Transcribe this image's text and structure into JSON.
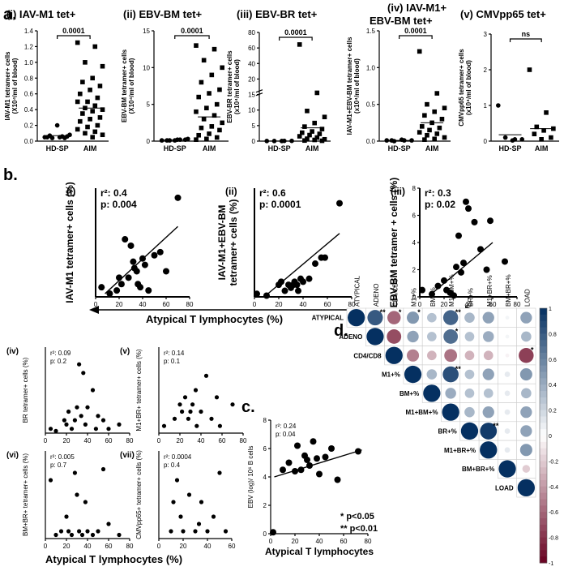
{
  "panel_labels": {
    "a": "a.",
    "b": "b.",
    "c": "c.",
    "d": "d."
  },
  "chart_data": [
    {
      "id": "ai",
      "type": "scatter-dot",
      "title": "(i) IAV-M1 tet+",
      "ylabel": "IAV-M1 tetramer+ cells (X10⁴/ml of blood)",
      "categories": [
        "HD-SP",
        "AIM"
      ],
      "ylim": [
        0,
        1.4
      ],
      "yticks": [
        "0.0",
        "0.2",
        "0.4",
        "0.6",
        "0.8",
        "1.0",
        "1.2",
        "1.4"
      ],
      "pvalue": "0.0001",
      "groups": [
        [
          0.05,
          0.06,
          0.04,
          0.08,
          0.05,
          0.07,
          0.06,
          0.2,
          0.05,
          0.04
        ],
        [
          1.25,
          1.2,
          1.0,
          0.95,
          0.8,
          0.75,
          0.7,
          0.65,
          0.6,
          0.55,
          0.5,
          0.5,
          0.45,
          0.42,
          0.4,
          0.38,
          0.35,
          0.3,
          0.28,
          0.25,
          0.2,
          0.18,
          0.15,
          0.12,
          0.1,
          0.08,
          0.05
        ]
      ],
      "means": [
        0.07,
        0.42
      ]
    },
    {
      "id": "aii",
      "type": "scatter-dot",
      "title": "(ii) EBV-BM tet+",
      "ylabel": "EBV-BM tetramer+ cells (X10⁴/ml of blood)",
      "categories": [
        "HD-SP",
        "AIM"
      ],
      "ylim": [
        0,
        15
      ],
      "yticks": [
        "0",
        "5",
        "10",
        "15"
      ],
      "pvalue": "0.0001",
      "groups": [
        [
          0.1,
          0.2,
          0.1,
          0.3,
          0.2,
          0.1,
          0.2,
          0.1
        ],
        [
          13,
          12.5,
          11,
          10,
          9,
          8,
          7,
          6.5,
          6,
          5,
          4.5,
          4,
          3.5,
          3,
          2.5,
          2,
          1.8,
          1.5,
          1,
          0.8,
          0.5,
          0.3,
          0.2
        ]
      ],
      "means": [
        0.15,
        3.3
      ]
    },
    {
      "id": "aiii",
      "type": "scatter-dot",
      "title": "(iii) EBV-BR tet+",
      "ylabel": "EBV-BR tetramer+ cells (x10⁴/ml of blood)",
      "categories": [
        "HD-SP",
        "AIM"
      ],
      "ylim": [
        0,
        90
      ],
      "yticks": [
        "0",
        "5",
        "10",
        "15",
        "20",
        "40",
        "60",
        "80"
      ],
      "break_ticks": [
        "0",
        "5",
        "10",
        "15"
      ],
      "pvalue": "0.0001",
      "groups": [
        [
          0.1,
          0.2,
          0.1,
          0.2,
          0.1
        ],
        [
          80,
          40,
          25,
          20,
          15,
          12,
          10,
          8,
          7,
          6,
          5,
          4,
          3,
          2,
          1.5,
          1,
          0.5,
          0.3
        ]
      ],
      "means": [
        0.1,
        11
      ]
    },
    {
      "id": "aiv",
      "type": "scatter-dot",
      "title": "(iv) IAV-M1+ EBV-BM tet+",
      "ylabel": "IAV-M1+EBV-BM tetramer+ cells (x10⁴/ml of blood)",
      "categories": [
        "HD-SP",
        "AIM"
      ],
      "ylim": [
        0,
        1.5
      ],
      "yticks": [
        "0.0",
        "0.5",
        "1.0",
        "1.5"
      ],
      "pvalue": "0.0001",
      "groups": [
        [
          0.01,
          0.01,
          0.0,
          0.01,
          0.02,
          0.01
        ],
        [
          1.22,
          0.65,
          0.5,
          0.45,
          0.4,
          0.35,
          0.3,
          0.25,
          0.2,
          0.18,
          0.15,
          0.12,
          0.1,
          0.08,
          0.05,
          0.03,
          0.02
        ]
      ],
      "means": [
        0.01,
        0.25
      ]
    },
    {
      "id": "av",
      "type": "scatter-dot",
      "title": "(v) CMVpp65 tet+",
      "ylabel": "CMVpp65 tetramer+ cells (x10⁴/ml of blood)",
      "categories": [
        "HD-SP",
        "AIM"
      ],
      "ylim": [
        0,
        3
      ],
      "yticks": [
        "0",
        "1",
        "2",
        "3"
      ],
      "pvalue": "ns",
      "groups": [
        [
          1.0,
          0.05,
          0.1,
          0.05,
          0.02
        ],
        [
          2.0,
          0.8,
          0.4,
          0.35,
          0.3,
          0.2,
          0.1,
          0.05
        ]
      ],
      "means": [
        0.18,
        0.35
      ]
    },
    {
      "id": "bi",
      "type": "scatter",
      "roman": "(i)",
      "ylabel": "IAV-M1 tetramer+ cells (%)",
      "r2": "r²: 0.4",
      "p": "p: 0.004",
      "xticks": [
        "0",
        "20",
        "40",
        "60",
        "80"
      ],
      "yticks": [],
      "xlim": [
        0,
        80
      ],
      "ylim": [
        0,
        1.7
      ],
      "points": [
        [
          5,
          0.15
        ],
        [
          12,
          0.05
        ],
        [
          18,
          0.1
        ],
        [
          20,
          0.3
        ],
        [
          22,
          0.2
        ],
        [
          25,
          0.9
        ],
        [
          28,
          0.3
        ],
        [
          30,
          0.8
        ],
        [
          32,
          0.55
        ],
        [
          33,
          0.45
        ],
        [
          35,
          0.4
        ],
        [
          36,
          0.2
        ],
        [
          38,
          0.15
        ],
        [
          40,
          0.6
        ],
        [
          42,
          0.5
        ],
        [
          45,
          0.1
        ],
        [
          50,
          0.65
        ],
        [
          55,
          0.7
        ],
        [
          60,
          0.4
        ],
        [
          70,
          1.55
        ]
      ],
      "line": [
        [
          8,
          0.05
        ],
        [
          70,
          1.1
        ]
      ]
    },
    {
      "id": "bii",
      "type": "scatter",
      "roman": "(ii)",
      "ylabel": "IAV-M1+EBV-BM tetramer+ cells (%)",
      "r2": "r²: 0.6",
      "p": "p: 0.0001",
      "xticks": [
        "0",
        "20",
        "40",
        "60",
        "80"
      ],
      "yticks": [],
      "xlim": [
        0,
        80
      ],
      "ylim": [
        0,
        1.8
      ],
      "points": [
        [
          2,
          0.05
        ],
        [
          10,
          0.02
        ],
        [
          20,
          0.2
        ],
        [
          22,
          0.25
        ],
        [
          25,
          0.1
        ],
        [
          28,
          0.2
        ],
        [
          30,
          0.15
        ],
        [
          32,
          0.2
        ],
        [
          33,
          0.25
        ],
        [
          35,
          0.2
        ],
        [
          36,
          0.1
        ],
        [
          38,
          0.3
        ],
        [
          40,
          0.25
        ],
        [
          45,
          0.3
        ],
        [
          50,
          0.55
        ],
        [
          55,
          0.65
        ],
        [
          58,
          0.65
        ],
        [
          70,
          1.55
        ]
      ],
      "line": [
        [
          8,
          0.0
        ],
        [
          70,
          1.05
        ]
      ]
    },
    {
      "id": "biii",
      "type": "scatter",
      "roman": "(iii)",
      "ylabel": "EBV-BM tetramer + cells (%)",
      "r2": "r²: 0.3",
      "p": "p: 0.02",
      "xticks": [
        "0",
        "20",
        "40",
        "60",
        "80"
      ],
      "yticks": [
        "0",
        "2",
        "4",
        "6",
        "8"
      ],
      "xlim": [
        0,
        80
      ],
      "ylim": [
        0,
        8
      ],
      "points": [
        [
          2,
          0.5
        ],
        [
          10,
          0.2
        ],
        [
          15,
          0.8
        ],
        [
          20,
          1.2
        ],
        [
          22,
          0.5
        ],
        [
          25,
          0.3
        ],
        [
          28,
          0.1
        ],
        [
          30,
          2.2
        ],
        [
          32,
          4.5
        ],
        [
          34,
          1.8
        ],
        [
          36,
          2.5
        ],
        [
          38,
          7.0
        ],
        [
          40,
          6.5
        ],
        [
          45,
          5.5
        ],
        [
          50,
          3.5
        ],
        [
          55,
          2.0
        ],
        [
          58,
          5.6
        ],
        [
          70,
          2.6
        ]
      ],
      "line": [
        [
          8,
          0.1
        ],
        [
          60,
          4.0
        ]
      ]
    },
    {
      "id": "biv",
      "type": "scatter",
      "roman": "(iv)",
      "ylabel": "BR tetramer+ cells (%)",
      "r2": "r²: 0.09",
      "p": "p: 0.2",
      "xticks": [
        "0",
        "20",
        "40",
        "60",
        "80"
      ],
      "xlim": [
        0,
        80
      ],
      "ylim": [
        0,
        20
      ],
      "points": [
        [
          5,
          1
        ],
        [
          10,
          0.5
        ],
        [
          18,
          3
        ],
        [
          20,
          2
        ],
        [
          22,
          5
        ],
        [
          25,
          1
        ],
        [
          28,
          3
        ],
        [
          30,
          6
        ],
        [
          32,
          16
        ],
        [
          34,
          4
        ],
        [
          36,
          14
        ],
        [
          38,
          2
        ],
        [
          40,
          6
        ],
        [
          45,
          10
        ],
        [
          48,
          1
        ],
        [
          50,
          4
        ],
        [
          55,
          3
        ],
        [
          60,
          1
        ],
        [
          70,
          2
        ]
      ]
    },
    {
      "id": "bv",
      "type": "scatter",
      "roman": "(v)",
      "ylabel": "M1+BR+ tetramer+ cells (%)",
      "r2": "r²: 0.14",
      "p": "p: 0.1",
      "xticks": [
        "0",
        "20",
        "40",
        "60",
        "80"
      ],
      "xlim": [
        0,
        80
      ],
      "ylim": [
        0,
        0.6
      ],
      "points": [
        [
          5,
          0.05
        ],
        [
          15,
          0.1
        ],
        [
          20,
          0.2
        ],
        [
          22,
          0.15
        ],
        [
          25,
          0.25
        ],
        [
          28,
          0.1
        ],
        [
          30,
          0.15
        ],
        [
          32,
          0.2
        ],
        [
          35,
          0.3
        ],
        [
          36,
          0.05
        ],
        [
          40,
          0.15
        ],
        [
          45,
          0.4
        ],
        [
          50,
          0.1
        ],
        [
          55,
          0.25
        ],
        [
          58,
          0.05
        ],
        [
          70,
          0.2
        ]
      ]
    },
    {
      "id": "bvi",
      "type": "scatter",
      "roman": "(vi)",
      "ylabel": "BM+BR+ tetramer+ cells (%)",
      "r2": "r²: 0.005",
      "p": "p: 0.7",
      "xticks": [
        "0",
        "20",
        "40",
        "60",
        "80"
      ],
      "xlim": [
        0,
        80
      ],
      "ylim": [
        0,
        1.2
      ],
      "points": [
        [
          5,
          0.8
        ],
        [
          10,
          0.05
        ],
        [
          15,
          0.1
        ],
        [
          20,
          0.3
        ],
        [
          22,
          0.1
        ],
        [
          25,
          0.05
        ],
        [
          28,
          0.9
        ],
        [
          30,
          0.6
        ],
        [
          32,
          0.1
        ],
        [
          35,
          0.05
        ],
        [
          38,
          0.5
        ],
        [
          40,
          0.1
        ],
        [
          45,
          0.05
        ],
        [
          50,
          0.1
        ],
        [
          55,
          0.95
        ],
        [
          60,
          0.2
        ],
        [
          70,
          0.05
        ]
      ]
    },
    {
      "id": "bvii",
      "type": "scatter",
      "roman": "(vii)",
      "ylabel": "CMVpp65+ tetramer+ cells (%)",
      "r2": "r²: 0.0004",
      "p": "p: 0.4",
      "xticks": [
        "0",
        "20",
        "40",
        "60"
      ],
      "xlim": [
        0,
        60
      ],
      "ylim": [
        0,
        1.2
      ],
      "points": [
        [
          10,
          0.1
        ],
        [
          12,
          0.5
        ],
        [
          15,
          0.8
        ],
        [
          18,
          0.3
        ],
        [
          20,
          0.1
        ],
        [
          25,
          0.6
        ],
        [
          30,
          0.1
        ],
        [
          33,
          0.2
        ],
        [
          35,
          0.5
        ],
        [
          40,
          0.1
        ],
        [
          45,
          0.3
        ],
        [
          50,
          0.9
        ],
        [
          55,
          0.1
        ]
      ]
    },
    {
      "id": "c",
      "type": "scatter",
      "ylabel": "EBV (log)/ 10⁶ B cells",
      "xlabel": "Atypical T lymphocytes",
      "r2": "r²: 0.24",
      "p": "p: 0.04",
      "xticks": [
        "0",
        "20",
        "40",
        "60",
        "80"
      ],
      "yticks": [
        "0",
        "2",
        "4",
        "6",
        "8"
      ],
      "xlim": [
        0,
        80
      ],
      "ylim": [
        0,
        8
      ],
      "points": [
        [
          2,
          0.1
        ],
        [
          10,
          4.5
        ],
        [
          15,
          5.0
        ],
        [
          20,
          4.4
        ],
        [
          22,
          6.2
        ],
        [
          25,
          4.5
        ],
        [
          28,
          5.5
        ],
        [
          30,
          5.2
        ],
        [
          32,
          4.8
        ],
        [
          35,
          6.5
        ],
        [
          38,
          5.3
        ],
        [
          40,
          4.2
        ],
        [
          45,
          5.4
        ],
        [
          50,
          6.0
        ],
        [
          55,
          3.8
        ],
        [
          72,
          5.8
        ]
      ],
      "line": [
        [
          3,
          4.0
        ],
        [
          75,
          5.9
        ]
      ]
    },
    {
      "id": "d",
      "type": "heatmap",
      "labels": [
        "ATYPICAL",
        "ADENO",
        "CD4/CD8",
        "M1+%",
        "BM+%",
        "M1+BM+%",
        "BR+%",
        "M1+BR+%",
        "BM+BR+%",
        "LOAD"
      ],
      "corr": [
        [
          1,
          0.8,
          -0.6,
          0.5,
          0.3,
          0.75,
          0.35,
          0.45,
          0.05,
          0.45
        ],
        [
          0.8,
          1,
          -0.7,
          0.45,
          0.3,
          0.7,
          0.3,
          0.4,
          0.05,
          0.35
        ],
        [
          -0.6,
          -0.7,
          1,
          -0.5,
          -0.3,
          -0.55,
          -0.3,
          -0.3,
          -0.05,
          -0.75
        ],
        [
          0.5,
          0.45,
          -0.5,
          1,
          0.35,
          0.85,
          0.3,
          0.45,
          0.1,
          0.5
        ],
        [
          0.3,
          0.3,
          -0.3,
          0.35,
          1,
          0.4,
          0.3,
          0.3,
          0.1,
          0.35
        ],
        [
          0.75,
          0.7,
          -0.55,
          0.85,
          0.4,
          1,
          0.35,
          0.45,
          0.1,
          0.45
        ],
        [
          0.35,
          0.3,
          -0.3,
          0.3,
          0.3,
          0.35,
          1,
          0.95,
          0.1,
          0.45
        ],
        [
          0.45,
          0.4,
          -0.3,
          0.45,
          0.3,
          0.45,
          0.95,
          1,
          0.1,
          0.5
        ],
        [
          0.05,
          0.05,
          -0.05,
          0.1,
          0.1,
          0.1,
          0.1,
          0.1,
          1,
          -0.2
        ],
        [
          0.45,
          0.35,
          -0.75,
          0.5,
          0.35,
          0.45,
          0.45,
          0.5,
          -0.2,
          1
        ]
      ],
      "stars": [
        [
          0,
          1,
          "**"
        ],
        [
          0,
          2,
          "*"
        ],
        [
          0,
          3,
          "*"
        ],
        [
          0,
          5,
          "**"
        ],
        [
          1,
          5,
          "*"
        ],
        [
          2,
          9,
          "*"
        ],
        [
          3,
          5,
          "**"
        ],
        [
          6,
          7,
          "**"
        ]
      ],
      "colorbar_ticks": [
        "1",
        "0.8",
        "0.6",
        "0.4",
        "0.2",
        "0",
        "-0.2",
        "-0.4",
        "-0.6",
        "-0.8",
        "-1"
      ],
      "legend": [
        "*  p<0.05",
        "** p<0.01"
      ]
    }
  ],
  "shared_xlabel_b": "Atypical T lymphocytes (%)",
  "shared_xlabel_b_bottom": "Atypical T lymphocytes (%)"
}
